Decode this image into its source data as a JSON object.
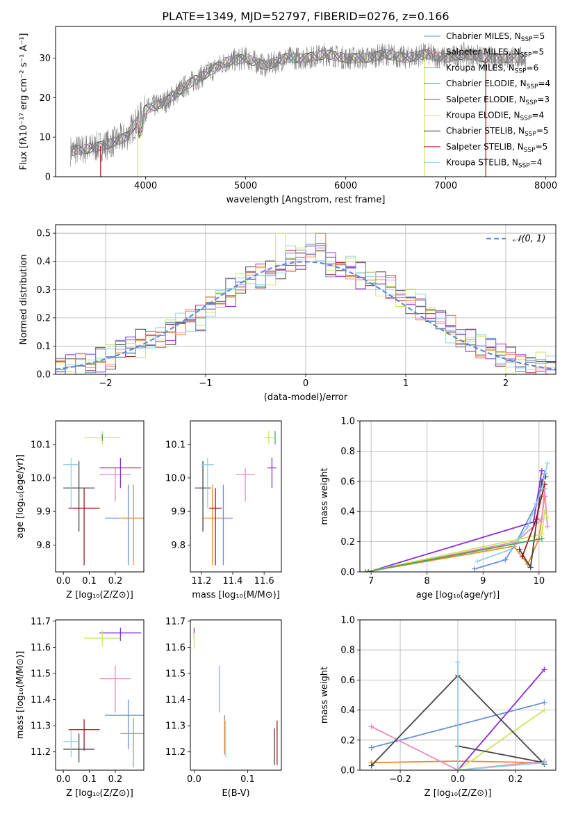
{
  "figure_title": "PLATE=1349, MJD=52797, FIBERID=0276, z=0.166",
  "colors": {
    "spectrum": "#7f7f7f",
    "series": [
      "#6a8fd8",
      "#4dcfcf",
      "#f08a2c",
      "#4aa05a",
      "#8a2be2",
      "#c8e85a",
      "#444444",
      "#a0141e",
      "#8fd0ea",
      "#e88ac0"
    ]
  },
  "chart_data": [
    {
      "id": "spectrum",
      "type": "line",
      "title": "",
      "xlabel": "wavelength [Angstrom, rest frame]",
      "ylabel": "Flux [fλ10⁻¹⁷ erg cm⁻² s⁻¹ A⁻¹]",
      "xlim": [
        3100,
        8100
      ],
      "ylim": [
        0,
        38
      ],
      "xticks": [
        4000,
        5000,
        6000,
        7000,
        8000
      ],
      "yticks": [
        0,
        10,
        20,
        30
      ],
      "grid": false,
      "legend_position": "top-right",
      "legend": [
        {
          "label": "Chabrier MILES, N",
          "sub": "SSP",
          "tail": "=5",
          "color": "#6a8fd8"
        },
        {
          "label": "Salpeter MILES, N",
          "sub": "SSP",
          "tail": "=5",
          "color": "#e88ac0"
        },
        {
          "label": "Kroupa MILES, N",
          "sub": "SSP",
          "tail": "=6",
          "color": "#f08a2c"
        },
        {
          "label": "Chabrier ELODIE, N",
          "sub": "SSP",
          "tail": "=4",
          "color": "#4aa05a"
        },
        {
          "label": "Salpeter ELODIE, N",
          "sub": "SSP",
          "tail": "=3",
          "color": "#8a2be2"
        },
        {
          "label": "Kroupa ELODIE, N",
          "sub": "SSP",
          "tail": "=4",
          "color": "#c8e85a"
        },
        {
          "label": "Chabrier STELIB, N",
          "sub": "SSP",
          "tail": "=5",
          "color": "#444444"
        },
        {
          "label": "Salpeter STELIB, N",
          "sub": "SSP",
          "tail": "=5",
          "color": "#a0141e"
        },
        {
          "label": "Kroupa STELIB, N",
          "sub": "SSP",
          "tail": "=4",
          "color": "#8fd0ea"
        }
      ],
      "continuum": {
        "x": [
          3250,
          3400,
          3600,
          3800,
          4000,
          4200,
          4400,
          4600,
          4800,
          5000,
          5200,
          5400,
          5600,
          5800,
          6000,
          6200,
          6400,
          6600,
          6800,
          7000,
          7200,
          7400,
          7600
        ],
        "y": [
          6.5,
          7,
          8,
          10,
          17,
          19,
          23,
          26,
          29,
          30,
          28,
          30,
          30,
          31,
          30,
          30,
          31,
          30,
          31,
          30,
          31,
          30,
          30
        ]
      },
      "drops": [
        {
          "x": 3550,
          "color": "#a0141e"
        },
        {
          "x": 3920,
          "color": "#c8e85a"
        },
        {
          "x": 6790,
          "color": "#c8e85a"
        },
        {
          "x": 7400,
          "color": "#a0141e"
        }
      ]
    },
    {
      "id": "residuals",
      "type": "histogram",
      "xlabel": "(data-model)/error",
      "ylabel": "Normed distribution",
      "xlim": [
        -2.5,
        2.5
      ],
      "ylim": [
        0,
        0.53
      ],
      "xticks": [
        -2,
        -1,
        0,
        1,
        2
      ],
      "yticks": [
        0.0,
        0.1,
        0.2,
        0.3,
        0.4,
        0.5
      ],
      "grid": true,
      "legend_position": "top-right",
      "reference_curve": {
        "label": "𝒩(0, 1)",
        "color": "#5b8bd8",
        "sigma": 1
      },
      "bins": [
        -2.5,
        -2.4,
        -2.3,
        -2.2,
        -2.1,
        -2.0,
        -1.9,
        -1.8,
        -1.7,
        -1.6,
        -1.5,
        -1.4,
        -1.3,
        -1.2,
        -1.1,
        -1.0,
        -0.9,
        -0.8,
        -0.7,
        -0.6,
        -0.5,
        -0.4,
        -0.3,
        -0.2,
        -0.1,
        0.0,
        0.1,
        0.2,
        0.3,
        0.4,
        0.5,
        0.6,
        0.7,
        0.8,
        0.9,
        1.0,
        1.1,
        1.2,
        1.3,
        1.4,
        1.5,
        1.6,
        1.7,
        1.8,
        1.9,
        2.0,
        2.1,
        2.2,
        2.3,
        2.4,
        2.5
      ],
      "base_values": [
        0.03,
        0.03,
        0.03,
        0.04,
        0.05,
        0.06,
        0.09,
        0.1,
        0.11,
        0.12,
        0.13,
        0.15,
        0.18,
        0.19,
        0.2,
        0.24,
        0.27,
        0.29,
        0.32,
        0.35,
        0.35,
        0.36,
        0.37,
        0.41,
        0.41,
        0.44,
        0.45,
        0.39,
        0.37,
        0.38,
        0.35,
        0.34,
        0.32,
        0.31,
        0.27,
        0.26,
        0.24,
        0.21,
        0.19,
        0.16,
        0.13,
        0.12,
        0.1,
        0.09,
        0.07,
        0.05,
        0.04,
        0.03,
        0.03,
        0.03
      ]
    },
    {
      "id": "age-vs-Z",
      "type": "scatter",
      "xlabel": "Z [log₁₀(Z/Z⊙)]",
      "ylabel": "age  [log₁₀(age/yr)]",
      "xlim": [
        -0.03,
        0.31
      ],
      "ylim": [
        9.72,
        10.17
      ],
      "xticks": [
        0.0,
        0.1,
        0.2
      ],
      "yticks": [
        9.8,
        9.9,
        10.0,
        10.1
      ],
      "points": [
        {
          "x": 0.25,
          "y": 9.88,
          "xerr": 0.09,
          "yerr": [
            0.14,
            0.1
          ],
          "color": "#6a8fd8"
        },
        {
          "x": 0.27,
          "y": 9.88,
          "xerr": 0.05,
          "yerr": [
            0.14,
            0.1
          ],
          "color": "#f08a2c"
        },
        {
          "x": 0.2,
          "y": 10.01,
          "xerr": 0.06,
          "yerr": [
            0.08,
            0.02
          ],
          "color": "#e88ac0"
        },
        {
          "x": 0.22,
          "y": 10.03,
          "xerr": 0.08,
          "yerr": [
            0.06,
            0.03
          ],
          "color": "#8a2be2"
        },
        {
          "x": 0.15,
          "y": 10.12,
          "xerr": 0.07,
          "yerr": [
            0.02,
            0.02
          ],
          "color": "#c8e85a"
        },
        {
          "x": 0.06,
          "y": 9.97,
          "xerr": 0.06,
          "yerr": [
            0.13,
            0.08
          ],
          "color": "#444444"
        },
        {
          "x": 0.08,
          "y": 9.91,
          "xerr": 0.06,
          "yerr": [
            0.17,
            0.06
          ],
          "color": "#a0141e"
        },
        {
          "x": 0.03,
          "y": 10.04,
          "xerr": 0.03,
          "yerr": [
            0.13,
            0.02
          ],
          "color": "#8fd0ea"
        },
        {
          "x": 0.15,
          "y": 10.12,
          "xerr": 0.0,
          "yerr": [
            0.01,
            0.01
          ],
          "color": "#4aa05a"
        }
      ]
    },
    {
      "id": "age-vs-mass",
      "type": "scatter",
      "xlabel": "mass [log₁₀(M/M⊙)]",
      "ylabel": "",
      "xlim": [
        11.13,
        11.71
      ],
      "ylim": [
        9.72,
        10.17
      ],
      "xticks": [
        11.2,
        11.4,
        11.6
      ],
      "yticks": [
        9.8,
        9.9,
        10.0,
        10.1
      ],
      "points": [
        {
          "x": 11.34,
          "y": 9.88,
          "xerr": 0.06,
          "yerr": [
            0.14,
            0.1
          ],
          "color": "#6a8fd8"
        },
        {
          "x": 11.27,
          "y": 9.88,
          "xerr": 0.06,
          "yerr": [
            0.14,
            0.1
          ],
          "color": "#f08a2c"
        },
        {
          "x": 11.48,
          "y": 10.01,
          "xerr": 0.06,
          "yerr": [
            0.08,
            0.02
          ],
          "color": "#e88ac0"
        },
        {
          "x": 11.65,
          "y": 10.03,
          "xerr": 0.03,
          "yerr": [
            0.06,
            0.03
          ],
          "color": "#8a2be2"
        },
        {
          "x": 11.63,
          "y": 10.12,
          "xerr": 0.03,
          "yerr": [
            0.02,
            0.02
          ],
          "color": "#c8e85a"
        },
        {
          "x": 11.21,
          "y": 9.97,
          "xerr": 0.05,
          "yerr": [
            0.13,
            0.08
          ],
          "color": "#444444"
        },
        {
          "x": 11.29,
          "y": 9.91,
          "xerr": 0.04,
          "yerr": [
            0.17,
            0.06
          ],
          "color": "#a0141e"
        },
        {
          "x": 11.24,
          "y": 10.04,
          "xerr": 0.04,
          "yerr": [
            0.13,
            0.02
          ],
          "color": "#8fd0ea"
        },
        {
          "x": 11.67,
          "y": 10.12,
          "xerr": 0.0,
          "yerr": [
            0.02,
            0.02
          ],
          "color": "#4aa05a"
        }
      ]
    },
    {
      "id": "mass-weight-vs-age",
      "type": "line",
      "xlabel": "age  [log₁₀(age/yr)]",
      "ylabel": "mass weight",
      "xlim": [
        6.8,
        10.3
      ],
      "ylim": [
        0,
        1
      ],
      "xticks": [
        7,
        8,
        9,
        10
      ],
      "yticks": [
        0.0,
        0.2,
        0.4,
        0.6,
        0.8,
        1.0
      ],
      "grid": true,
      "series": [
        {
          "color": "#6a8fd8",
          "x": [
            8.85,
            9.4,
            9.6,
            9.95,
            10.1
          ],
          "y": [
            0.02,
            0.08,
            0.2,
            0.45,
            0.65
          ]
        },
        {
          "color": "#f08a2c",
          "x": [
            6.9,
            9.55,
            9.8,
            10.0,
            10.1
          ],
          "y": [
            0.0,
            0.17,
            0.05,
            0.22,
            0.5
          ]
        },
        {
          "color": "#e88ac0",
          "x": [
            6.95,
            9.6,
            10.05,
            10.1,
            10.15
          ],
          "y": [
            0.0,
            0.2,
            0.35,
            0.55,
            0.3
          ]
        },
        {
          "color": "#8a2be2",
          "x": [
            6.95,
            9.9,
            10.05
          ],
          "y": [
            0.0,
            0.33,
            0.67
          ]
        },
        {
          "color": "#c8e85a",
          "x": [
            6.9,
            10.05,
            10.1,
            10.15
          ],
          "y": [
            0.0,
            0.25,
            0.4,
            0.36
          ]
        },
        {
          "color": "#444444",
          "x": [
            9.65,
            9.85,
            10.05,
            10.12
          ],
          "y": [
            0.15,
            0.03,
            0.6,
            0.63
          ]
        },
        {
          "color": "#a0141e",
          "x": [
            9.7,
            9.95,
            10.1
          ],
          "y": [
            0.1,
            0.35,
            0.58
          ]
        },
        {
          "color": "#8fd0ea",
          "x": [
            8.9,
            9.5,
            9.8,
            10.05,
            10.15
          ],
          "y": [
            0.07,
            0.15,
            0.3,
            0.55,
            0.72
          ]
        },
        {
          "color": "#4aa05a",
          "x": [
            6.9,
            10.05
          ],
          "y": [
            0.0,
            0.22
          ]
        }
      ]
    },
    {
      "id": "mass-vs-Z",
      "type": "scatter",
      "xlabel": "Z [log₁₀(Z/Z⊙)]",
      "ylabel": "mass [log₁₀(M/M⊙)]",
      "xlim": [
        -0.03,
        0.31
      ],
      "ylim": [
        11.13,
        11.705
      ],
      "xticks": [
        0.0,
        0.1,
        0.2
      ],
      "yticks": [
        11.2,
        11.3,
        11.4,
        11.5,
        11.6,
        11.7
      ],
      "points": [
        {
          "x": 0.25,
          "y": 11.34,
          "xerr": 0.09,
          "yerr": [
            0.13,
            0.06
          ],
          "color": "#6a8fd8"
        },
        {
          "x": 0.27,
          "y": 11.27,
          "xerr": 0.05,
          "yerr": [
            0.13,
            0.06
          ],
          "color": "#f08a2c"
        },
        {
          "x": 0.2,
          "y": 11.48,
          "xerr": 0.06,
          "yerr": [
            0.13,
            0.05
          ],
          "color": "#e88ac0"
        },
        {
          "x": 0.22,
          "y": 11.655,
          "xerr": 0.08,
          "yerr": [
            0.03,
            0.02
          ],
          "color": "#8a2be2"
        },
        {
          "x": 0.15,
          "y": 11.635,
          "xerr": 0.07,
          "yerr": [
            0.03,
            0.03
          ],
          "color": "#c8e85a"
        },
        {
          "x": 0.06,
          "y": 11.21,
          "xerr": 0.06,
          "yerr": [
            0.05,
            0.06
          ],
          "color": "#444444"
        },
        {
          "x": 0.08,
          "y": 11.285,
          "xerr": 0.06,
          "yerr": [
            0.08,
            0.04
          ],
          "color": "#a0141e"
        },
        {
          "x": 0.03,
          "y": 11.24,
          "xerr": 0.03,
          "yerr": [
            0.06,
            0.04
          ],
          "color": "#8fd0ea"
        }
      ]
    },
    {
      "id": "mass-vs-ebv",
      "type": "scatter",
      "xlabel": "E(B-V)",
      "ylabel": "",
      "xlim": [
        -0.007,
        0.163
      ],
      "ylim": [
        11.13,
        11.705
      ],
      "xticks": [
        0.0,
        0.1
      ],
      "yticks": [
        11.2,
        11.3,
        11.4,
        11.5,
        11.6,
        11.7
      ],
      "points": [
        {
          "x": 0.047,
          "y": 11.44,
          "yerr": [
            0.09,
            0.09
          ],
          "color": "#e88ac0"
        },
        {
          "x": 0.057,
          "y": 11.27,
          "yerr": [
            0.08,
            0.07
          ],
          "color": "#6a8fd8"
        },
        {
          "x": 0.057,
          "y": 11.26,
          "yerr": [
            0.07,
            0.07
          ],
          "color": "#f08a2c"
        },
        {
          "x": 0.059,
          "y": 11.25,
          "yerr": [
            0.07,
            0.07
          ],
          "color": "#8fd0ea"
        },
        {
          "x": 0.15,
          "y": 11.22,
          "yerr": [
            0.07,
            0.07
          ],
          "color": "#444444"
        },
        {
          "x": 0.155,
          "y": 11.23,
          "yerr": [
            0.08,
            0.09
          ],
          "color": "#a0141e"
        },
        {
          "x": 0.0,
          "y": 11.655,
          "yerr": [
            0.02,
            0.02
          ],
          "color": "#8a2be2"
        },
        {
          "x": 0.0,
          "y": 11.625,
          "yerr": [
            0.03,
            0.03
          ],
          "color": "#c8e85a"
        }
      ]
    },
    {
      "id": "mass-weight-vs-Z",
      "type": "line",
      "xlabel": "Z [log₁₀(Z/Z⊙)]",
      "ylabel": "mass weight",
      "xlim": [
        -0.34,
        0.34
      ],
      "ylim": [
        0,
        1
      ],
      "xticks": [
        -0.2,
        0.0,
        0.2
      ],
      "yticks": [
        0.0,
        0.2,
        0.4,
        0.6,
        0.8,
        1.0
      ],
      "grid": true,
      "series": [
        {
          "color": "#6a8fd8",
          "x": [
            -0.3,
            0.0,
            0.3
          ],
          "y": [
            0.15,
            0.3,
            0.45
          ]
        },
        {
          "color": "#f08a2c",
          "x": [
            -0.3,
            0.0,
            0.3
          ],
          "y": [
            0.05,
            0.06,
            0.05
          ]
        },
        {
          "color": "#e88ac0",
          "x": [
            -0.3,
            0.0,
            0.3
          ],
          "y": [
            0.29,
            0.0,
            0.06
          ]
        },
        {
          "color": "#8a2be2",
          "x": [
            0.0,
            0.3
          ],
          "y": [
            0.0,
            0.67
          ]
        },
        {
          "color": "#c8e85a",
          "x": [
            0.0,
            0.3
          ],
          "y": [
            0.0,
            0.4
          ]
        },
        {
          "color": "#444444",
          "x": [
            -0.3,
            0.0,
            0.3
          ],
          "y": [
            0.03,
            0.63,
            0.04
          ]
        },
        {
          "color": "#444444",
          "x": [
            0.0,
            0.3
          ],
          "y": [
            0.16,
            0.05
          ]
        },
        {
          "color": "#8fd0ea",
          "x": [
            0.0,
            0.0,
            0.3
          ],
          "y": [
            0.72,
            0.0,
            0.05
          ]
        }
      ]
    }
  ]
}
